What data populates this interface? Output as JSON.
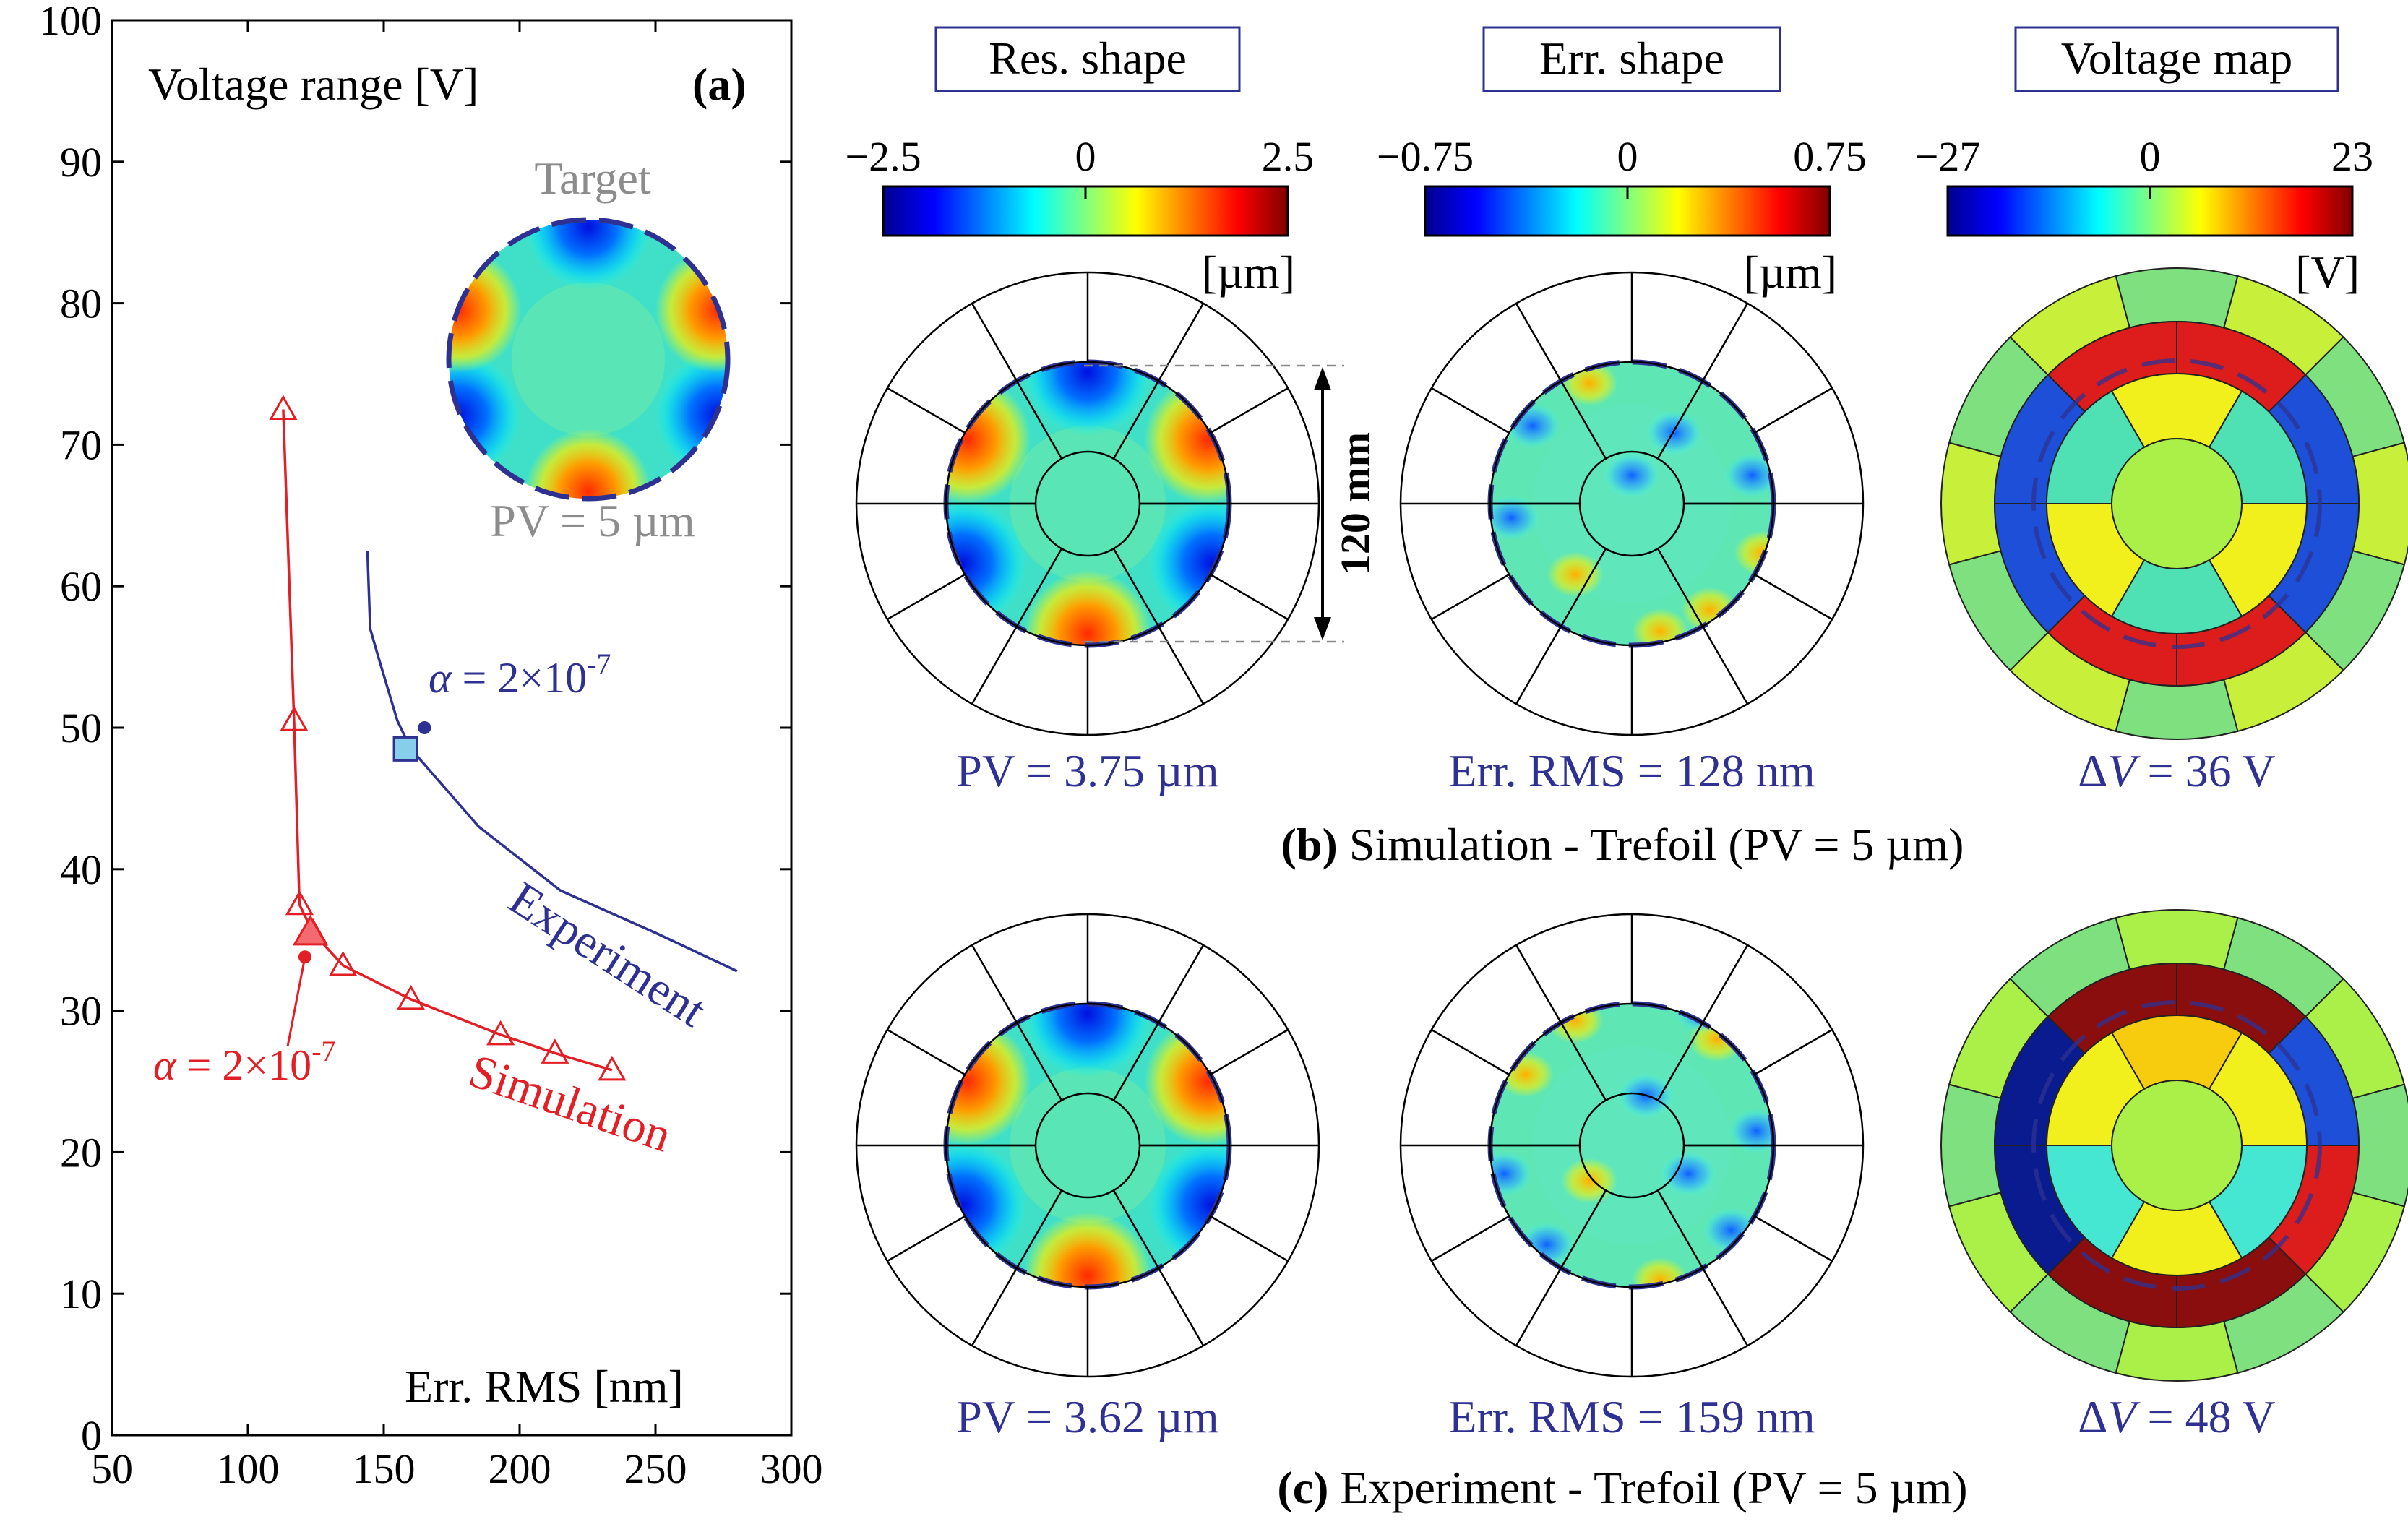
{
  "chart_data": [
    {
      "type": "line",
      "panel_label": "(a)",
      "ylabel": "Voltage range [V]",
      "xlabel": "Err. RMS [nm]",
      "xlim": [
        50,
        300
      ],
      "ylim": [
        0,
        100
      ],
      "xticks": [
        "50",
        "100",
        "150",
        "200",
        "250",
        "300"
      ],
      "yticks": [
        "0",
        "10",
        "20",
        "30",
        "40",
        "50",
        "60",
        "70",
        "80",
        "90",
        "100"
      ],
      "grid": false,
      "series": [
        {
          "name": "Simulation",
          "color": "#e31e24",
          "marker": "triangle-open",
          "x": [
            113,
            117,
            119,
            124,
            135,
            160,
            193,
            213,
            234
          ],
          "y": [
            72.5,
            50.5,
            37.5,
            35.5,
            33.2,
            30.8,
            28.3,
            27.0,
            25.8
          ]
        },
        {
          "name": "Experiment",
          "color": "#2e3192",
          "marker": "none",
          "x": [
            144,
            145,
            148,
            155,
            160,
            185,
            215,
            250,
            280
          ],
          "y": [
            62.5,
            57.0,
            55.0,
            50.5,
            48.5,
            43.0,
            38.5,
            35.5,
            32.8
          ]
        }
      ],
      "annotations": {
        "sim_alpha": {
          "prefix": "α",
          "eq": " = 2×10",
          "exp": "-7",
          "x": 123,
          "y": 34,
          "marker": "filled-triangle"
        },
        "exp_alpha": {
          "prefix": "α",
          "eq": " = 2×10",
          "exp": "-7",
          "x": 158,
          "y": 48.5,
          "marker": "filled-square",
          "marker_color": "#87ceeb"
        }
      },
      "inset": {
        "title": "Target",
        "caption": "PV = 5 µm"
      }
    }
  ],
  "column_titles": [
    "Res. shape",
    "Err. shape",
    "Voltage map"
  ],
  "colorbars": [
    {
      "ticks": [
        "−2.5",
        "0",
        "2.5"
      ],
      "unit": "[µm]"
    },
    {
      "ticks": [
        "−0.75",
        "0",
        "0.75"
      ],
      "unit": "[µm]"
    },
    {
      "ticks": [
        "−27",
        "0",
        "23"
      ],
      "unit": "[V]"
    }
  ],
  "dimension_label": "120 mm",
  "row_b": {
    "captions": [
      "PV = 3.75 µm",
      "Err. RMS = 128 nm",
      "ΔV = 36 V"
    ],
    "label_bold": "(b)",
    "label_text": " Simulation - Trefoil (PV = 5 µm)",
    "voltage_colors": {
      "outer": [
        "#7ee07e",
        "#c8ef3a",
        "#7ee07e",
        "#c8ef3a",
        "#7ee07e",
        "#c8ef3a",
        "#7ee07e",
        "#c8ef3a",
        "#7ee07e",
        "#c8ef3a",
        "#7ee07e",
        "#c8ef3a"
      ],
      "middle": [
        "#dd1c1c",
        "#dd1c1c",
        "#1e4fd8",
        "#1e4fd8",
        "#dd1c1c",
        "#dd1c1c",
        "#1e4fd8",
        "#1e4fd8"
      ],
      "inner": [
        "#f1f01c",
        "#4fe0b4",
        "#f1f01c",
        "#4fe0b4",
        "#f1f01c",
        "#4fe0b4"
      ],
      "center": "#aaf048"
    }
  },
  "row_c": {
    "captions": [
      "PV = 3.62 µm",
      "Err. RMS = 159 nm",
      "ΔV = 48 V"
    ],
    "label_bold": "(c)",
    "label_text": " Experiment - Trefoil (PV = 5 µm)",
    "voltage_colors": {
      "outer": [
        "#aaf048",
        "#7ee07e",
        "#aaf048",
        "#7ee07e",
        "#aaf048",
        "#7ee07e",
        "#aaf048",
        "#7ee07e",
        "#aaf048",
        "#7ee07e",
        "#aaf048",
        "#7ee07e"
      ],
      "middle": [
        "#8b0e0e",
        "#8b0e0e",
        "#1e4fd8",
        "#dd1c1c",
        "#8b0e0e",
        "#8b0e0e",
        "#0a1a8f",
        "#0a1a8f"
      ],
      "inner": [
        "#f7cb0e",
        "#f1f01c",
        "#45e6d2",
        "#f1f01c",
        "#45e6d2",
        "#f1f01c"
      ],
      "center": "#aaf048"
    }
  }
}
